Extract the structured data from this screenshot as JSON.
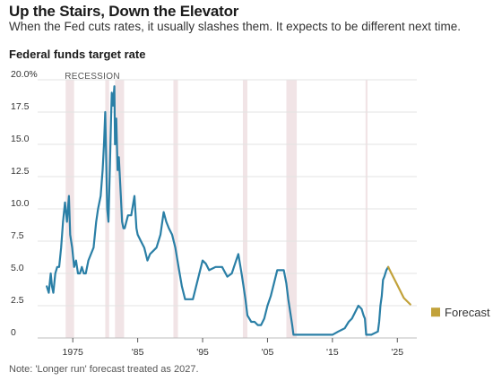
{
  "header": {
    "title": "Up the Stairs, Down the Elevator",
    "subtitle": "When the Fed cuts rates, it usually slashes them. It expects to be different next time."
  },
  "footer": {
    "note": "Note: 'Longer run' forecast treated as 2027."
  },
  "chart_data": {
    "type": "line",
    "title": "Federal funds target rate",
    "xlabel": "",
    "ylabel": "",
    "xlim": [
      1970,
      2028
    ],
    "ylim": [
      0,
      20
    ],
    "yticks": [
      {
        "value": 20,
        "label": "20.0%"
      },
      {
        "value": 17.5,
        "label": "17.5"
      },
      {
        "value": 15,
        "label": "15.0"
      },
      {
        "value": 12.5,
        "label": "12.5"
      },
      {
        "value": 10,
        "label": "10.0"
      },
      {
        "value": 7.5,
        "label": "7.5"
      },
      {
        "value": 5,
        "label": "5.0"
      },
      {
        "value": 2.5,
        "label": "2.5"
      },
      {
        "value": 0,
        "label": "0"
      }
    ],
    "xticks": [
      {
        "value": 1975,
        "label": "1975"
      },
      {
        "value": 1985,
        "label": "'85"
      },
      {
        "value": 1995,
        "label": "'95"
      },
      {
        "value": 2005,
        "label": "'05"
      },
      {
        "value": 2015,
        "label": "'15"
      },
      {
        "value": 2025,
        "label": "'25"
      }
    ],
    "grid": true,
    "recession_label": "RECESSION",
    "recessions": [
      [
        1973.9,
        1975.2
      ],
      [
        1980.0,
        1980.6
      ],
      [
        1981.5,
        1982.9
      ],
      [
        1990.5,
        1991.2
      ],
      [
        2001.2,
        2001.9
      ],
      [
        2007.9,
        2009.5
      ],
      [
        2020.1,
        2020.4
      ]
    ],
    "legend": {
      "position": "right",
      "entries": [
        {
          "name": "Forecast",
          "color": "#c2a23a"
        }
      ]
    },
    "colors": {
      "actual": "#2a7fa6",
      "forecast": "#c2a23a",
      "recession": "#f1e4e6",
      "grid": "#e3e3e3"
    },
    "series": [
      {
        "name": "",
        "x": [
          1971.0,
          1971.3,
          1971.6,
          1971.8,
          1972.0,
          1972.3,
          1972.6,
          1972.9,
          1973.2,
          1973.5,
          1973.8,
          1974.1,
          1974.4,
          1974.6,
          1974.9,
          1975.2,
          1975.5,
          1975.8,
          1976.1,
          1976.4,
          1976.7,
          1977.0,
          1977.4,
          1977.8,
          1978.2,
          1978.6,
          1978.9,
          1979.3,
          1979.6,
          1979.8,
          1980.0,
          1980.3,
          1980.5,
          1980.7,
          1980.9,
          1981.0,
          1981.2,
          1981.4,
          1981.5,
          1981.7,
          1981.9,
          1982.1,
          1982.4,
          1982.6,
          1982.8,
          1983.0,
          1983.5,
          1984.0,
          1984.5,
          1984.8,
          1985.0,
          1985.5,
          1986.0,
          1986.5,
          1986.9,
          1987.4,
          1987.9,
          1988.5,
          1989.0,
          1989.4,
          1989.8,
          1990.3,
          1990.8,
          1991.3,
          1991.8,
          1992.3,
          1992.8,
          1993.5,
          1994.0,
          1994.5,
          1995.0,
          1995.5,
          1996.0,
          1997.0,
          1998.0,
          1998.8,
          1999.5,
          2000.0,
          2000.5,
          2001.0,
          2001.3,
          2001.6,
          2001.9,
          2002.5,
          2003.0,
          2003.5,
          2004.0,
          2004.5,
          2005.0,
          2005.5,
          2006.0,
          2006.5,
          2007.0,
          2007.5,
          2007.9,
          2008.2,
          2008.5,
          2008.8,
          2009.0,
          2012.0,
          2015.0,
          2015.9,
          2016.9,
          2017.5,
          2018.0,
          2018.5,
          2019.0,
          2019.5,
          2019.8,
          2020.0,
          2020.2,
          2021.0,
          2022.0,
          2022.2,
          2022.4,
          2022.6,
          2022.8,
          2023.0,
          2023.3,
          2023.6
        ],
        "y": [
          4.0,
          3.5,
          5.0,
          4.0,
          3.5,
          5.0,
          5.5,
          5.5,
          7.0,
          9.0,
          10.5,
          9.0,
          11.0,
          8.0,
          7.0,
          5.5,
          6.0,
          5.0,
          5.0,
          5.5,
          5.0,
          5.0,
          6.0,
          6.5,
          7.0,
          9.0,
          10.0,
          11.0,
          13.0,
          15.0,
          17.5,
          10.0,
          9.0,
          13.0,
          17.0,
          19.0,
          18.0,
          19.5,
          15.0,
          17.0,
          13.0,
          14.0,
          11.0,
          9.0,
          8.5,
          8.5,
          9.5,
          9.5,
          11.0,
          8.5,
          8.0,
          7.5,
          7.0,
          6.0,
          6.5,
          6.75,
          7.0,
          8.0,
          9.75,
          9.0,
          8.5,
          8.0,
          7.0,
          5.5,
          4.0,
          3.0,
          3.0,
          3.0,
          4.0,
          5.0,
          6.0,
          5.75,
          5.25,
          5.5,
          5.5,
          4.75,
          5.0,
          5.75,
          6.5,
          5.0,
          4.0,
          3.0,
          1.75,
          1.25,
          1.25,
          1.0,
          1.0,
          1.5,
          2.5,
          3.25,
          4.25,
          5.25,
          5.25,
          5.25,
          4.25,
          3.0,
          2.0,
          1.0,
          0.25,
          0.25,
          0.25,
          0.5,
          0.75,
          1.25,
          1.5,
          2.0,
          2.5,
          2.25,
          1.75,
          1.5,
          0.25,
          0.25,
          0.5,
          1.25,
          2.5,
          3.25,
          4.5,
          4.75,
          5.25,
          5.5
        ]
      },
      {
        "name": "Forecast",
        "x": [
          2023.6,
          2024.0,
          2025.0,
          2026.0,
          2027.0
        ],
        "y": [
          5.5,
          5.1,
          4.1,
          3.1,
          2.6
        ]
      }
    ]
  }
}
